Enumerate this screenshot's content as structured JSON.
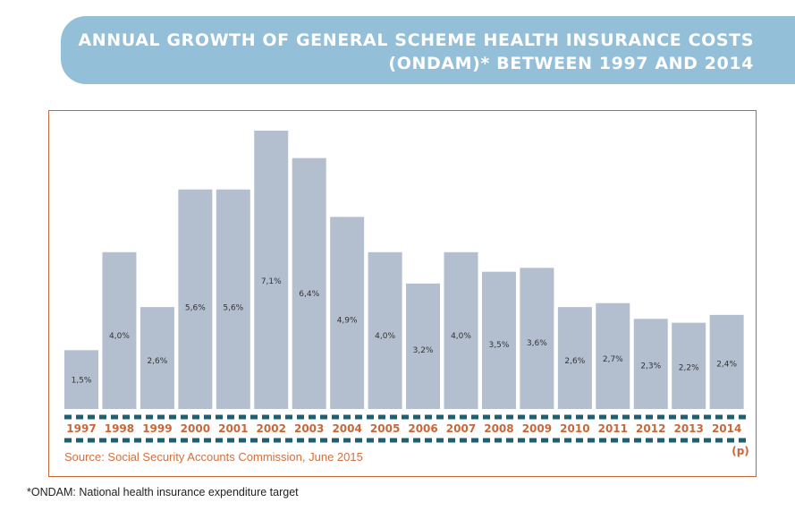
{
  "header": {
    "title_line1": "ANNUAL GROWTH OF GENERAL SCHEME HEALTH INSURANCE COSTS",
    "title_line2": "(ONDAM)* BETWEEN 1997 AND 2014"
  },
  "colors": {
    "title_band": "#93bfd9",
    "bar": "#b3bfcf",
    "axis_dash": "#1f5f6f",
    "year_label": "#c8683a",
    "frame": "#c8683a"
  },
  "source_note": "Source: Social Security Accounts Commission, June 2015",
  "footnote": "*ONDAM: National health insurance expenditure target",
  "chart_data": {
    "type": "bar",
    "categories": [
      "1997",
      "1998",
      "1999",
      "2000",
      "2001",
      "2002",
      "2003",
      "2004",
      "2005",
      "2006",
      "2007",
      "2008",
      "2009",
      "2010",
      "2011",
      "2012",
      "2013",
      "2014"
    ],
    "values": [
      1.5,
      4.0,
      2.6,
      5.6,
      5.6,
      7.1,
      6.4,
      4.9,
      4.0,
      3.2,
      4.0,
      3.5,
      3.6,
      2.6,
      2.7,
      2.3,
      2.2,
      2.4
    ],
    "value_labels": [
      "1,5%",
      "4,0%",
      "2,6%",
      "5,6%",
      "5,6%",
      "7,1%",
      "6,4%",
      "4,9%",
      "4,0%",
      "3,2%",
      "4,0%",
      "3,5%",
      "3,6%",
      "2,6%",
      "2,7%",
      "2,3%",
      "2,2%",
      "2,4%"
    ],
    "annotation": "(p)",
    "ylim": [
      0,
      7.1
    ]
  }
}
